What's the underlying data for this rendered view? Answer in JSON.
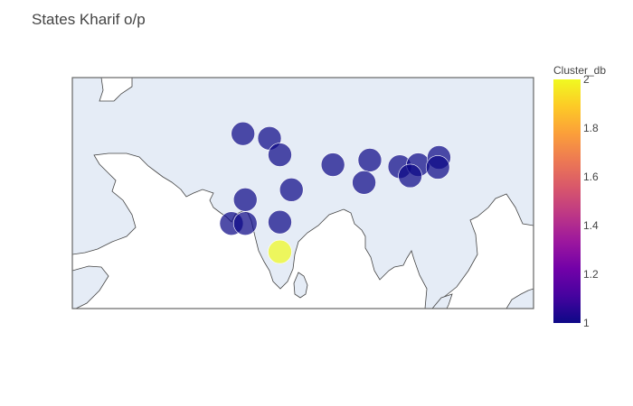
{
  "title": "States Kharif o/p",
  "colorbar": {
    "title": "Cluster_db",
    "ticks": [
      "1",
      "1.2",
      "1.4",
      "1.6",
      "1.8",
      "2"
    ],
    "tick_values": [
      1,
      1.2,
      1.4,
      1.6,
      1.8,
      2
    ],
    "range": [
      1,
      2
    ],
    "colorscale": [
      "#0d0887",
      "#46039f",
      "#7201a8",
      "#9c179e",
      "#bd3786",
      "#d8576b",
      "#ed7953",
      "#fb9f3a",
      "#fdca26",
      "#f0f921"
    ]
  },
  "colors": {
    "land": "#e5ecf6",
    "water": "#ffffff",
    "coast": "#444444",
    "frame": "#666666",
    "marker_fill_low": "#0d0887",
    "marker_fill_high": "#f0f921"
  },
  "chart_data": {
    "type": "scatter",
    "projection": "geo",
    "lon_range": [
      60,
      100
    ],
    "lat_range": [
      5,
      40
    ],
    "points": [
      {
        "lon": 74.8,
        "lat": 31.5,
        "cluster": 1
      },
      {
        "lon": 77.1,
        "lat": 30.8,
        "cluster": 1
      },
      {
        "lon": 78.0,
        "lat": 28.3,
        "cluster": 1
      },
      {
        "lon": 82.6,
        "lat": 26.8,
        "cluster": 1
      },
      {
        "lon": 85.8,
        "lat": 27.5,
        "cluster": 1
      },
      {
        "lon": 88.4,
        "lat": 26.5,
        "cluster": 1
      },
      {
        "lon": 90.0,
        "lat": 26.8,
        "cluster": 1
      },
      {
        "lon": 91.8,
        "lat": 27.9,
        "cluster": 1
      },
      {
        "lon": 91.7,
        "lat": 26.4,
        "cluster": 1
      },
      {
        "lon": 89.3,
        "lat": 25.1,
        "cluster": 1
      },
      {
        "lon": 85.3,
        "lat": 24.1,
        "cluster": 1
      },
      {
        "lon": 79.0,
        "lat": 23.0,
        "cluster": 1
      },
      {
        "lon": 75.0,
        "lat": 21.5,
        "cluster": 1
      },
      {
        "lon": 73.8,
        "lat": 17.9,
        "cluster": 1
      },
      {
        "lon": 75.0,
        "lat": 17.9,
        "cluster": 1
      },
      {
        "lon": 78.0,
        "lat": 18.1,
        "cluster": 1
      },
      {
        "lon": 78.0,
        "lat": 13.6,
        "cluster": 2
      }
    ]
  }
}
